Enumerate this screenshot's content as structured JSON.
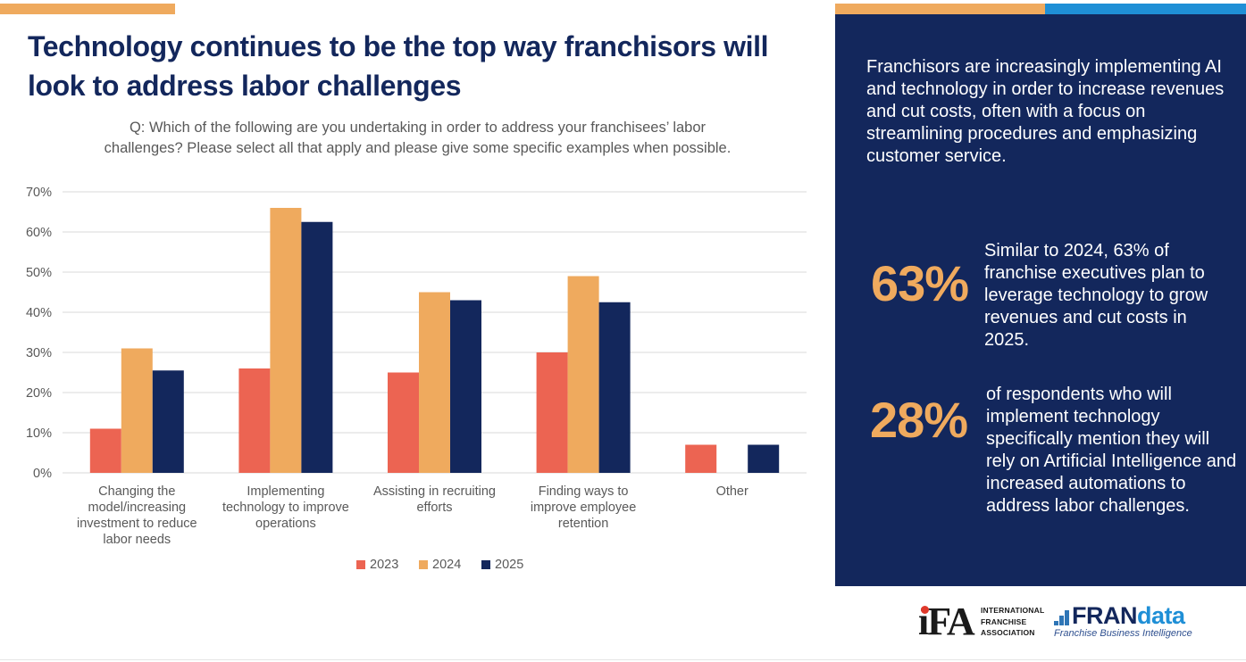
{
  "colors": {
    "navy": "#13275c",
    "orange": "#efaa5e",
    "coral": "#ec6452",
    "blue": "#1f8fd6",
    "text_gray": "#595959",
    "grid": "#d9d9d9"
  },
  "header": {
    "title": "Technology continues to be the top way franchisors will look to address labor challenges"
  },
  "chart_data": {
    "type": "bar",
    "title": "Q: Which of the following are you undertaking in order to address your franchisees’ labor challenges? Please select all that apply and please give some specific examples when possible.",
    "categories": [
      "Changing the model/increasing investment to reduce labor needs",
      "Implementing technology to improve operations",
      "Assisting in recruiting efforts",
      "Finding ways to improve employee retention",
      "Other"
    ],
    "category_lines": [
      [
        "Changing the",
        "model/increasing",
        "investment to reduce",
        "labor needs"
      ],
      [
        "Implementing",
        "technology to improve",
        "operations"
      ],
      [
        "Assisting in recruiting",
        "efforts"
      ],
      [
        "Finding ways to",
        "improve employee",
        "retention"
      ],
      [
        "Other"
      ]
    ],
    "series": [
      {
        "name": "2023",
        "color": "#ec6452",
        "values": [
          11,
          26,
          25,
          30,
          7
        ]
      },
      {
        "name": "2024",
        "color": "#efaa5e",
        "values": [
          31,
          66,
          45,
          49,
          null
        ]
      },
      {
        "name": "2025",
        "color": "#13275c",
        "values": [
          25.5,
          62.5,
          43,
          42.5,
          7
        ]
      }
    ],
    "ylim": [
      0,
      70
    ],
    "yticks": [
      0,
      10,
      20,
      30,
      40,
      50,
      60,
      70
    ],
    "ytick_labels": [
      "0%",
      "10%",
      "20%",
      "30%",
      "40%",
      "50%",
      "60%",
      "70%"
    ],
    "grid": true,
    "legend": "bottom"
  },
  "panel": {
    "intro": "Franchisors are increasingly implementing AI and technology in order to increase revenues and cut costs, often with a focus on streamlining procedures and emphasizing customer service.",
    "stats": [
      {
        "value": "63%",
        "text": "Similar to 2024, 63% of franchise executives plan to leverage technology to grow revenues and cut costs in 2025."
      },
      {
        "value": "28%",
        "text": "of respondents who will implement technology specifically mention they will rely on Artificial Intelligence and increased automations to address labor challenges."
      }
    ]
  },
  "logos": {
    "ifa": {
      "letters": "iFA",
      "words": [
        "INTERNATIONAL",
        "FRANCHISE",
        "ASSOCIATION"
      ]
    },
    "frandata": {
      "fran": "FRAN",
      "data": "data",
      "tagline": "Franchise Business Intelligence"
    }
  }
}
